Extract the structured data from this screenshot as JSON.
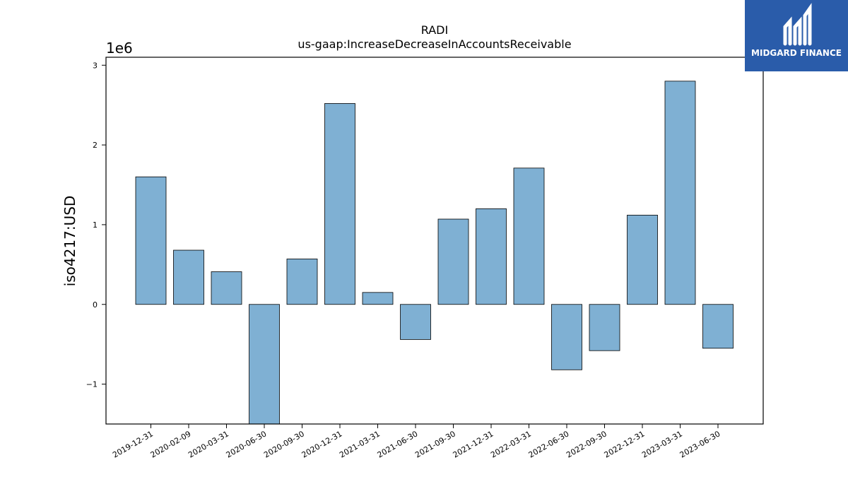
{
  "chart_data": {
    "type": "bar",
    "title": "RADI",
    "subtitle": "us-gaap:IncreaseDecreaseInAccountsReceivable",
    "xlabel": "",
    "ylabel": "iso4217:USD",
    "y_offset_label": "1e6",
    "ylim": [
      -1.5,
      3.1
    ],
    "yticks": [
      -1,
      0,
      1,
      2,
      3
    ],
    "ytick_labels": [
      "−1",
      "0",
      "1",
      "2",
      "3"
    ],
    "grid": false,
    "categories": [
      "2019-12-31",
      "2020-02-09",
      "2020-03-31",
      "2020-06-30",
      "2020-09-30",
      "2020-12-31",
      "2021-03-31",
      "2021-06-30",
      "2021-09-30",
      "2021-12-31",
      "2022-03-31",
      "2022-06-30",
      "2022-09-30",
      "2022-12-31",
      "2023-03-31",
      "2023-06-30"
    ],
    "values": [
      1.6,
      0.68,
      0.41,
      -1.5,
      0.57,
      2.52,
      0.15,
      -0.44,
      1.07,
      1.2,
      1.71,
      -0.82,
      -0.58,
      1.12,
      2.8,
      -0.55
    ],
    "bar_color": "#7fb0d3",
    "edge_color": "#000000"
  },
  "logo": {
    "text": "MIDGARD FINANCE",
    "background": "#2a5caa",
    "foreground": "#ffffff"
  }
}
